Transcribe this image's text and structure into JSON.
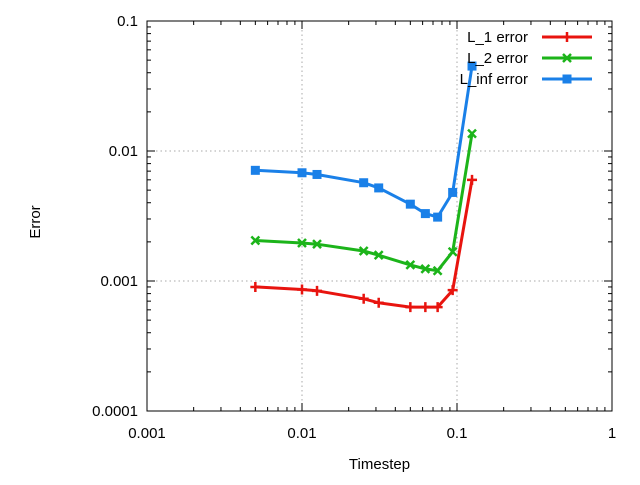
{
  "chart_data": {
    "type": "line",
    "xlabel": "Timestep",
    "ylabel": "Error",
    "xscale": "log",
    "yscale": "log",
    "xlim": [
      0.001,
      1
    ],
    "ylim": [
      0.0001,
      0.1
    ],
    "grid": true,
    "legend_position": "top-right",
    "x_ticks": [
      {
        "value": 0.001,
        "label": "0.001"
      },
      {
        "value": 0.01,
        "label": "0.01"
      },
      {
        "value": 0.1,
        "label": "0.1"
      },
      {
        "value": 1,
        "label": "1"
      }
    ],
    "y_ticks": [
      {
        "value": 0.0001,
        "label": "0.0001"
      },
      {
        "value": 0.001,
        "label": "0.001"
      },
      {
        "value": 0.01,
        "label": "0.01"
      },
      {
        "value": 0.1,
        "label": "0.1"
      }
    ],
    "series": [
      {
        "name": "L_1 error",
        "color": "#e8140f",
        "marker": "plus",
        "points": [
          [
            0.005,
            0.0009
          ],
          [
            0.01,
            0.00086
          ],
          [
            0.0125,
            0.00084
          ],
          [
            0.025,
            0.00073
          ],
          [
            0.03125,
            0.00068
          ],
          [
            0.05,
            0.00063
          ],
          [
            0.0625,
            0.00063
          ],
          [
            0.075,
            0.00063
          ],
          [
            0.09375,
            0.00085
          ],
          [
            0.125,
            0.006
          ]
        ]
      },
      {
        "name": "L_2 error",
        "color": "#1cb41a",
        "marker": "cross",
        "points": [
          [
            0.005,
            0.00205
          ],
          [
            0.01,
            0.00196
          ],
          [
            0.0125,
            0.00192
          ],
          [
            0.025,
            0.0017
          ],
          [
            0.03125,
            0.00158
          ],
          [
            0.05,
            0.00133
          ],
          [
            0.0625,
            0.00124
          ],
          [
            0.075,
            0.0012
          ],
          [
            0.09375,
            0.00168
          ],
          [
            0.125,
            0.0136
          ]
        ]
      },
      {
        "name": "L_inf error",
        "color": "#1a80e8",
        "marker": "square",
        "points": [
          [
            0.005,
            0.0071
          ],
          [
            0.01,
            0.0068
          ],
          [
            0.0125,
            0.0066
          ],
          [
            0.025,
            0.0057
          ],
          [
            0.03125,
            0.0052
          ],
          [
            0.05,
            0.0039
          ],
          [
            0.0625,
            0.0033
          ],
          [
            0.075,
            0.0031
          ],
          [
            0.09375,
            0.0048
          ],
          [
            0.125,
            0.045
          ]
        ]
      }
    ]
  }
}
